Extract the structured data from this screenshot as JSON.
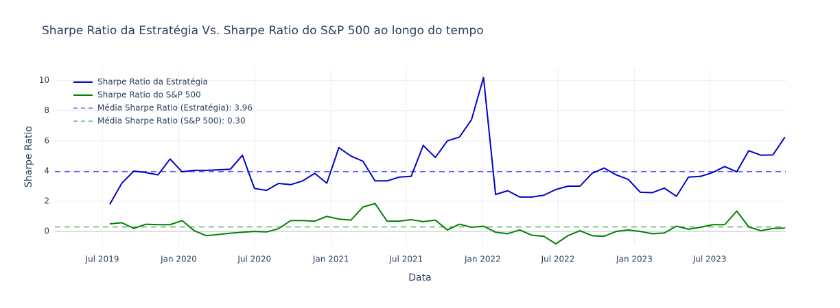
{
  "chart_data": {
    "type": "line",
    "title": "Sharpe Ratio da Estratégia Vs. Sharpe Ratio do S&P 500 ao longo do tempo",
    "xlabel": "Data",
    "ylabel": "Sharpe Ratio",
    "x": [
      "2019-07-19",
      "2019-08-17",
      "2019-09-15",
      "2019-10-14",
      "2019-11-12",
      "2019-12-11",
      "2020-01-09",
      "2020-02-07",
      "2020-03-07",
      "2020-04-05",
      "2020-05-04",
      "2020-06-02",
      "2020-07-01",
      "2020-07-30",
      "2020-08-28",
      "2020-09-26",
      "2020-10-25",
      "2020-11-23",
      "2020-12-22",
      "2021-01-20",
      "2021-02-18",
      "2021-03-19",
      "2021-04-17",
      "2021-05-16",
      "2021-06-14",
      "2021-07-13",
      "2021-08-11",
      "2021-09-09",
      "2021-10-08",
      "2021-11-06",
      "2021-12-05",
      "2022-01-03",
      "2022-02-01",
      "2022-03-02",
      "2022-03-31",
      "2022-04-29",
      "2022-05-28",
      "2022-06-26",
      "2022-07-25",
      "2022-08-23",
      "2022-09-21",
      "2022-10-20",
      "2022-11-18",
      "2022-12-17",
      "2023-01-15",
      "2023-02-13",
      "2023-03-14",
      "2023-04-12",
      "2023-05-11",
      "2023-06-09",
      "2023-07-08",
      "2023-08-06",
      "2023-09-04",
      "2023-10-03",
      "2023-11-01",
      "2023-11-30",
      "2023-12-29"
    ],
    "series": [
      {
        "name": "Sharpe Ratio da Estratégia",
        "color": "#0000cd",
        "values": [
          1.8,
          3.2,
          4.0,
          3.9,
          3.75,
          4.8,
          3.95,
          4.05,
          4.05,
          4.08,
          4.12,
          5.05,
          2.85,
          2.72,
          3.18,
          3.1,
          3.35,
          3.85,
          3.2,
          5.55,
          5.0,
          4.65,
          3.35,
          3.35,
          3.6,
          3.65,
          5.7,
          4.9,
          6.0,
          6.25,
          7.4,
          10.2,
          2.45,
          2.7,
          2.28,
          2.28,
          2.4,
          2.78,
          3.0,
          3.0,
          3.85,
          4.2,
          3.75,
          3.45,
          2.6,
          2.57,
          2.87,
          2.33,
          3.6,
          3.65,
          3.9,
          4.3,
          3.95,
          5.35,
          5.05,
          5.07,
          6.25
        ]
      },
      {
        "name": "Sharpe Ratio do S&P 500",
        "color": "#008000",
        "values": [
          0.5,
          0.58,
          0.2,
          0.48,
          0.45,
          0.45,
          0.72,
          0.05,
          -0.28,
          -0.2,
          -0.12,
          -0.05,
          0.0,
          -0.03,
          0.18,
          0.72,
          0.72,
          0.68,
          1.0,
          0.82,
          0.75,
          1.62,
          1.85,
          0.68,
          0.68,
          0.78,
          0.65,
          0.75,
          0.1,
          0.48,
          0.28,
          0.35,
          -0.05,
          -0.15,
          0.1,
          -0.25,
          -0.32,
          -0.82,
          -0.28,
          0.05,
          -0.28,
          -0.32,
          0.0,
          0.1,
          0.0,
          -0.15,
          -0.1,
          0.35,
          0.15,
          0.28,
          0.45,
          0.45,
          1.35,
          0.3,
          0.05,
          0.2,
          0.22
        ]
      }
    ],
    "hlines": [
      {
        "name": "Média Sharpe Ratio (Estratégia): 3.96",
        "color": "rgba(0,0,255,0.7)",
        "value": 3.96
      },
      {
        "name": "Média Sharpe Ratio (S&P 500): 0.30",
        "color": "rgba(0,128,0,0.7)",
        "value": 0.3
      }
    ],
    "xlim": [
      "2019-03-09",
      "2023-12-31"
    ],
    "xticks": [
      {
        "value": "2019-07-01",
        "label": "Jul 2019"
      },
      {
        "value": "2020-01-01",
        "label": "Jan 2020"
      },
      {
        "value": "2020-07-01",
        "label": "Jul 2020"
      },
      {
        "value": "2021-01-01",
        "label": "Jan 2021"
      },
      {
        "value": "2021-07-01",
        "label": "Jul 2021"
      },
      {
        "value": "2022-01-01",
        "label": "Jan 2022"
      },
      {
        "value": "2022-07-01",
        "label": "Jul 2022"
      },
      {
        "value": "2023-01-01",
        "label": "Jan 2023"
      },
      {
        "value": "2023-07-01",
        "label": "Jul 2023"
      }
    ],
    "ylim": [
      -0.9,
      10.8
    ],
    "yticks": [
      0,
      2,
      4,
      6,
      8,
      10
    ],
    "grid": true,
    "legend": "top-left"
  }
}
